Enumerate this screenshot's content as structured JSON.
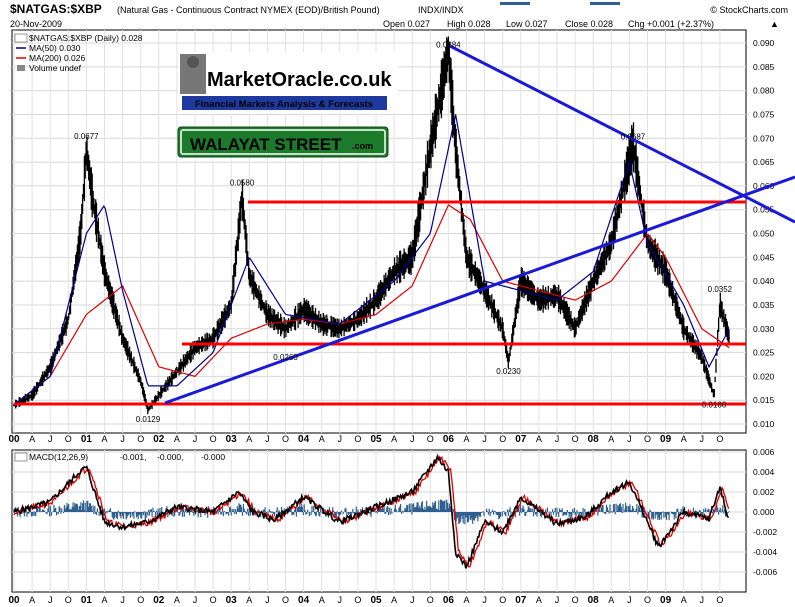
{
  "header": {
    "symbol": "$NATGAS:$XBP",
    "description": "(Natural Gas - Continuous Contract NYMEX (EOD)/British Pound)",
    "index_label": "INDX/INDX",
    "site": "© StockCharts.com",
    "date": "20-Nov-2009",
    "open": "Open 0.027",
    "high": "High 0.028",
    "low": "Low 0.027",
    "close": "Close 0.028",
    "chg": "Chg +0.001 (+2.37%)",
    "chg_arrow": "▲"
  },
  "legend": {
    "main": "$NATGAS:$XBP (Daily) 0.028",
    "ma50": "MA(50) 0.030",
    "ma200": "MA(200) 0.026",
    "volume": "Volume undef"
  },
  "logos": {
    "market_oracle": "MarketOracle.co.uk",
    "market_oracle_sub": "Financial Markets Analysis & Forecasts",
    "walayat": "WALAYAT STREET",
    "walayat_com": ".com"
  },
  "macd": {
    "label": "MACD(12,26,9)",
    "v1": "-0.001,",
    "v2": "-0.000,",
    "v3": "-0.000",
    "colors": {
      "macd": "#000000",
      "signal": "#e00000",
      "histogram": "#2e5f8f"
    }
  },
  "colors": {
    "price": "#000000",
    "ma50": "#00008b",
    "ma200": "#dd0000",
    "trend": "#1a1ad6",
    "support": "#ff0000"
  },
  "chart_data": [
    {
      "type": "line",
      "title": "$NATGAS:$XBP (Natural Gas - Continuous Contract NYMEX (EOD)/British Pound)",
      "xlabel": "",
      "ylabel": "",
      "x_ticks": [
        "00",
        "A",
        "J",
        "O",
        "01",
        "A",
        "J",
        "O",
        "02",
        "A",
        "J",
        "O",
        "03",
        "A",
        "J",
        "O",
        "04",
        "A",
        "J",
        "O",
        "05",
        "A",
        "J",
        "O",
        "06",
        "A",
        "J",
        "O",
        "07",
        "A",
        "J",
        "O",
        "08",
        "A",
        "J",
        "O",
        "09",
        "A",
        "J",
        "O"
      ],
      "y_ticks": [
        "0.010",
        "0.015",
        "0.020",
        "0.025",
        "0.030",
        "0.035",
        "0.040",
        "0.045",
        "0.050",
        "0.055",
        "0.060",
        "0.065",
        "0.070",
        "0.075",
        "0.080",
        "0.085",
        "0.090"
      ],
      "ylim": [
        0.01,
        0.091
      ],
      "xlim": [
        2000.0,
        2010.0
      ],
      "series": [
        {
          "name": "price",
          "x": [
            2000.0,
            2000.25,
            2000.5,
            2000.75,
            2000.92,
            2001.0,
            2001.08,
            2001.25,
            2001.5,
            2001.75,
            2001.85,
            2002.0,
            2002.25,
            2002.5,
            2002.75,
            2003.0,
            2003.15,
            2003.25,
            2003.5,
            2003.75,
            2004.0,
            2004.25,
            2004.5,
            2004.75,
            2005.0,
            2005.25,
            2005.5,
            2005.75,
            2005.9,
            2006.0,
            2006.1,
            2006.25,
            2006.5,
            2006.75,
            2006.83,
            2007.0,
            2007.25,
            2007.5,
            2007.75,
            2008.0,
            2008.25,
            2008.45,
            2008.55,
            2008.75,
            2009.0,
            2009.25,
            2009.5,
            2009.67,
            2009.75,
            2009.88
          ],
          "values": [
            0.014,
            0.016,
            0.022,
            0.032,
            0.05,
            0.0677,
            0.058,
            0.042,
            0.028,
            0.019,
            0.0129,
            0.016,
            0.021,
            0.026,
            0.028,
            0.035,
            0.058,
            0.041,
            0.033,
            0.03,
            0.034,
            0.031,
            0.03,
            0.032,
            0.036,
            0.042,
            0.045,
            0.068,
            0.08,
            0.0884,
            0.068,
            0.045,
            0.038,
            0.03,
            0.023,
            0.04,
            0.036,
            0.037,
            0.03,
            0.04,
            0.048,
            0.062,
            0.0687,
            0.048,
            0.042,
            0.03,
            0.024,
            0.016,
            0.0352,
            0.028
          ]
        },
        {
          "name": "MA(50)",
          "x": [
            2000.0,
            2000.5,
            2001.0,
            2001.25,
            2001.5,
            2001.85,
            2002.25,
            2002.75,
            2003.25,
            2003.75,
            2004.5,
            2005.25,
            2005.75,
            2006.1,
            2006.5,
            2007.0,
            2007.5,
            2008.0,
            2008.5,
            2008.75,
            2009.25,
            2009.6,
            2009.88
          ],
          "values": [
            0.014,
            0.02,
            0.05,
            0.056,
            0.038,
            0.018,
            0.018,
            0.025,
            0.045,
            0.033,
            0.031,
            0.04,
            0.05,
            0.075,
            0.04,
            0.038,
            0.036,
            0.042,
            0.065,
            0.048,
            0.035,
            0.022,
            0.03
          ]
        },
        {
          "name": "MA(200)",
          "x": [
            2000.0,
            2000.5,
            2001.0,
            2001.5,
            2002.0,
            2002.5,
            2003.0,
            2003.5,
            2004.0,
            2004.5,
            2005.0,
            2005.5,
            2006.0,
            2006.3,
            2006.75,
            2007.25,
            2007.75,
            2008.25,
            2008.75,
            2009.0,
            2009.5,
            2009.88
          ],
          "values": [
            0.014,
            0.02,
            0.033,
            0.039,
            0.022,
            0.02,
            0.028,
            0.031,
            0.032,
            0.031,
            0.033,
            0.039,
            0.056,
            0.053,
            0.04,
            0.038,
            0.036,
            0.04,
            0.05,
            0.045,
            0.03,
            0.026
          ]
        }
      ],
      "annotations": [
        "0.0677",
        "0.0580",
        "0.0129",
        "0.0260",
        "0.0884",
        "0.0230",
        "0.0687",
        "0.0352",
        "0.0160"
      ]
    },
    {
      "type": "line",
      "title": "MACD(12,26,9)",
      "xlabel": "",
      "ylabel": "",
      "y_ticks": [
        "-0.006",
        "-0.004",
        "-0.002",
        "0.000",
        "0.002",
        "0.004",
        "0.006"
      ],
      "ylim": [
        -0.0065,
        0.0065
      ],
      "xlim": [
        2000.0,
        2010.0
      ],
      "series": [
        {
          "name": "MACD",
          "x": [
            2000.0,
            2000.5,
            2000.9,
            2001.0,
            2001.25,
            2001.5,
            2001.85,
            2002.25,
            2002.75,
            2003.1,
            2003.3,
            2003.6,
            2004.0,
            2004.5,
            2005.0,
            2005.5,
            2005.85,
            2006.0,
            2006.1,
            2006.25,
            2006.5,
            2006.75,
            2007.0,
            2007.5,
            2007.9,
            2008.25,
            2008.5,
            2008.75,
            2008.9,
            2009.25,
            2009.6,
            2009.75,
            2009.88
          ],
          "values": [
            0.0,
            0.001,
            0.004,
            0.0045,
            -0.001,
            -0.0015,
            -0.001,
            0.0005,
            0.0,
            0.002,
            0.0,
            -0.0008,
            0.0015,
            -0.001,
            0.0005,
            0.002,
            0.0055,
            0.004,
            -0.004,
            -0.0055,
            -0.001,
            -0.002,
            0.0015,
            -0.0012,
            -0.0005,
            0.002,
            0.003,
            -0.001,
            -0.0035,
            0.0,
            -0.0007,
            0.0025,
            -0.001
          ]
        }
      ]
    }
  ]
}
